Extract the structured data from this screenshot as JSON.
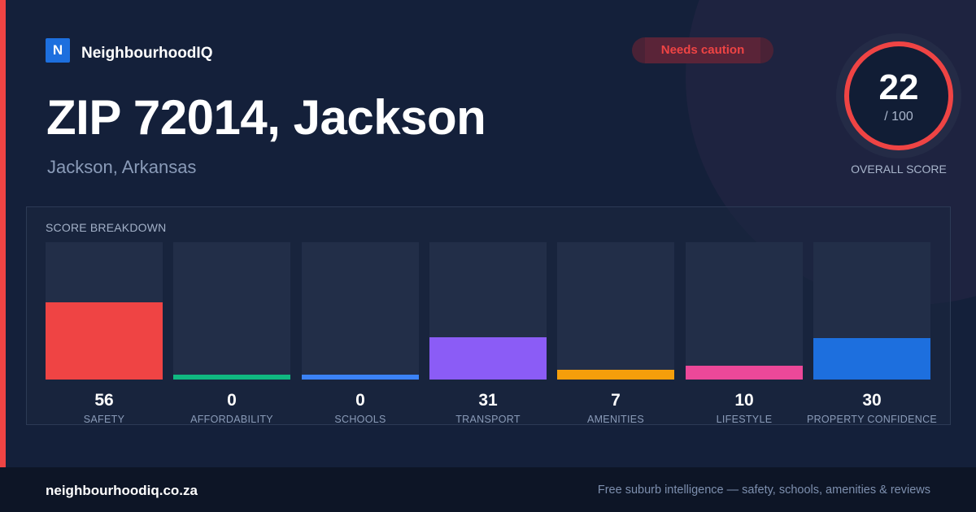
{
  "brand": {
    "logo_letter": "N",
    "name": "NeighbourhoodIQ",
    "logo_color": "#1d6fde"
  },
  "status_badge": {
    "label": "Needs caution",
    "color": "#ef4444"
  },
  "location": {
    "title": "ZIP 72014, Jackson",
    "subtitle": "Jackson, Arkansas"
  },
  "overall_score": {
    "value": "22",
    "max_label": "/ 100",
    "caption": "OVERALL SCORE",
    "max": 100,
    "ring_color": "#ef4444"
  },
  "breakdown": {
    "title": "SCORE BREAKDOWN",
    "max": 100,
    "items": [
      {
        "label": "SAFETY",
        "value": 56,
        "color": "#ef4444"
      },
      {
        "label": "AFFORDABILITY",
        "value": 0,
        "color": "#10b981"
      },
      {
        "label": "SCHOOLS",
        "value": 0,
        "color": "#3b82f6"
      },
      {
        "label": "TRANSPORT",
        "value": 31,
        "color": "#8b5cf6"
      },
      {
        "label": "AMENITIES",
        "value": 7,
        "color": "#f59e0b"
      },
      {
        "label": "LIFESTYLE",
        "value": 10,
        "color": "#ec4899"
      },
      {
        "label": "PROPERTY CONFIDENCE",
        "value": 30,
        "color": "#1d6fde"
      }
    ]
  },
  "footer": {
    "domain": "neighbourhoodiq.co.za",
    "tagline": "Free suburb intelligence — safety, schools, amenities & reviews"
  }
}
